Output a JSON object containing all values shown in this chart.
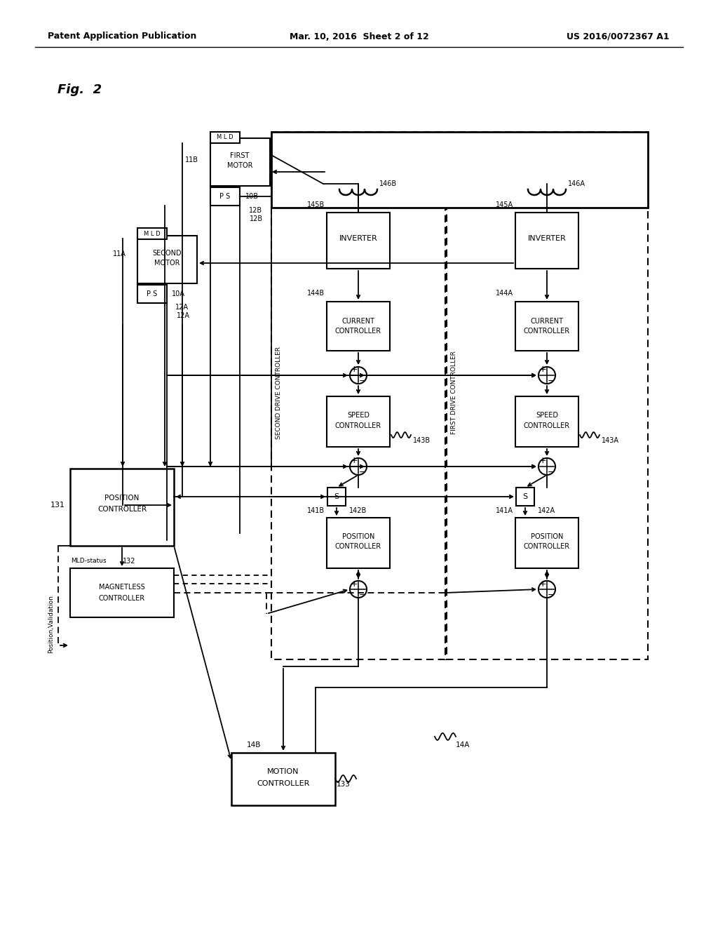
{
  "bg": "#ffffff",
  "hdr_left": "Patent Application Publication",
  "hdr_mid": "Mar. 10, 2016  Sheet 2 of 12",
  "hdr_right": "US 2016/0072367 A1",
  "fig_lbl": "Fig.  2"
}
